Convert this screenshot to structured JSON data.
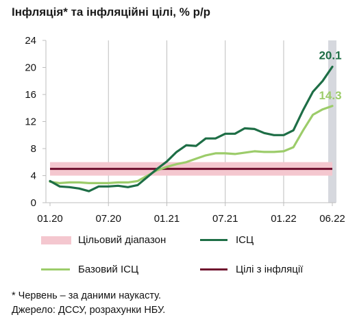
{
  "title": "Інфляція* та інфляційні цілі, % р/р",
  "chart_data": {
    "type": "line",
    "y_ticks": [
      0,
      4,
      8,
      12,
      16,
      20,
      24
    ],
    "ylim": [
      0,
      24
    ],
    "x_labels": [
      "01.20",
      "07.20",
      "01.21",
      "07.21",
      "01.22",
      "06.22"
    ],
    "x": [
      "01.20",
      "02.20",
      "03.20",
      "04.20",
      "05.20",
      "06.20",
      "07.20",
      "08.20",
      "09.20",
      "10.20",
      "11.20",
      "12.20",
      "01.21",
      "02.21",
      "03.21",
      "04.21",
      "05.21",
      "06.21",
      "07.21",
      "08.21",
      "09.21",
      "10.21",
      "11.21",
      "12.21",
      "01.22",
      "02.22",
      "03.22",
      "04.22",
      "05.22",
      "06.22"
    ],
    "target_band": [
      4,
      6
    ],
    "target_line": 5,
    "nowcast_period": "06.22",
    "series": [
      {
        "name": "ІСЦ",
        "color": "#1e6e46",
        "values": [
          3.2,
          2.4,
          2.3,
          2.1,
          1.7,
          2.4,
          2.4,
          2.5,
          2.3,
          2.6,
          3.8,
          5.0,
          6.1,
          7.5,
          8.5,
          8.4,
          9.5,
          9.5,
          10.2,
          10.2,
          11.0,
          10.9,
          10.3,
          10.0,
          10.0,
          10.7,
          13.7,
          16.4,
          18.0,
          20.1
        ]
      },
      {
        "name": "Базовий ІСЦ",
        "color": "#9ccc6a",
        "values": [
          3.1,
          2.9,
          3.0,
          3.0,
          2.9,
          2.9,
          2.9,
          3.0,
          3.0,
          3.2,
          4.0,
          4.8,
          5.3,
          5.7,
          6.0,
          6.5,
          7.0,
          7.3,
          7.3,
          7.2,
          7.4,
          7.6,
          7.5,
          7.5,
          7.6,
          8.2,
          10.7,
          13.0,
          13.8,
          14.3
        ]
      }
    ],
    "end_labels": {
      "cpi": "20.1",
      "core": "14.3"
    }
  },
  "legend": {
    "target_range": "Цільовий діапазон",
    "cpi": "ІСЦ",
    "core": "Базовий ІСЦ",
    "target": "Цілі з інфляції"
  },
  "colors": {
    "band": "#f4c7cf",
    "target_line": "#6e0d2d",
    "nowcast_shade": "#d6d8de",
    "grid": "#bdbdbd"
  },
  "footnote": {
    "line1": "* Червень – за даними наукасту.",
    "line2": "Джерело: ДССУ, розрахунки НБУ."
  }
}
